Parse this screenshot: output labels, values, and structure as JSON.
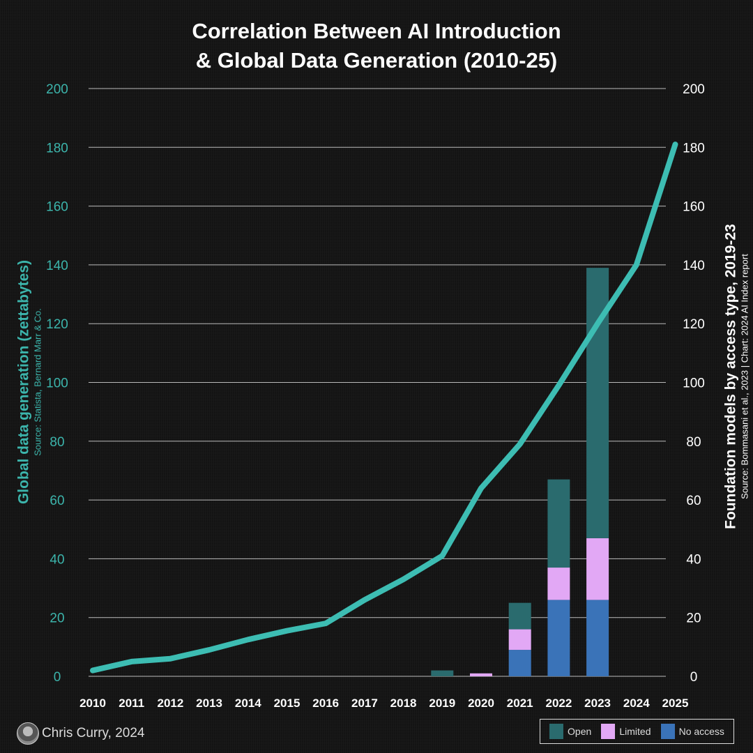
{
  "chart_data": {
    "type": "bar+line",
    "title": "Correlation Between AI Introduction & Global Data Generation (2010-25)",
    "title_lines": [
      "Correlation Between AI Introduction",
      "& Global Data Generation (2010-25)"
    ],
    "categories": [
      "2010",
      "2011",
      "2012",
      "2013",
      "2014",
      "2015",
      "2016",
      "2017",
      "2018",
      "2019",
      "2020",
      "2021",
      "2022",
      "2023",
      "2024",
      "2025"
    ],
    "left_axis": {
      "label": "Global data generation (zettabytes)",
      "source": "Source: Statista, Bernard Marr & Co.",
      "ylim": [
        0,
        200
      ],
      "ticks": [
        "0",
        "20",
        "40",
        "60",
        "80",
        "100",
        "120",
        "140",
        "160",
        "180",
        "200"
      ],
      "color": "#3cb5ac"
    },
    "right_axis": {
      "label": "Foundation models by access type, 2019-23",
      "source": "Source: Bommasani et al., 2023 | Chart: 2024 AI Index report",
      "ylim": [
        0,
        200
      ],
      "ticks": [
        "0",
        "20",
        "40",
        "60",
        "80",
        "100",
        "120",
        "140",
        "160",
        "180",
        "200"
      ]
    },
    "line": {
      "axis": "left",
      "color": "#3dbdb3",
      "values": [
        2,
        5,
        6,
        9,
        12.5,
        15.5,
        18,
        26,
        33,
        41,
        64,
        79,
        99,
        120,
        140,
        181
      ]
    },
    "bars": {
      "axis": "right",
      "stacked": true,
      "series": [
        {
          "name": "No access",
          "color": "#3a73b8",
          "values": [
            0,
            0,
            0,
            0,
            0,
            0,
            0,
            0,
            0,
            0,
            0,
            9,
            26,
            26,
            0,
            0
          ]
        },
        {
          "name": "Limited",
          "color": "#e2a8f5",
          "values": [
            0,
            0,
            0,
            0,
            0,
            0,
            0,
            0,
            0,
            0,
            1,
            7,
            11,
            21,
            0,
            0
          ]
        },
        {
          "name": "Open",
          "color": "#2a6b6e",
          "values": [
            0,
            0,
            0,
            0,
            0,
            0,
            0,
            0,
            0,
            2,
            0,
            9,
            30,
            92,
            0,
            0
          ]
        }
      ]
    },
    "legend": {
      "placement": "bottom-right",
      "items": [
        "Open",
        "Limited",
        "No access"
      ]
    },
    "grid": true
  },
  "footer": {
    "author": "Chris Curry, 2024"
  }
}
